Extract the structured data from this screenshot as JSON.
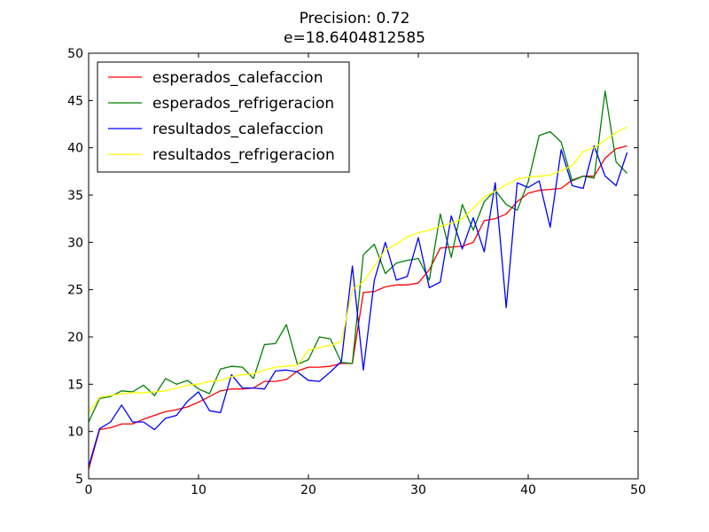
{
  "chart_data": {
    "type": "line",
    "title": "Precision: 0.72",
    "subtitle": "e=18.6404812585",
    "xlabel": "",
    "ylabel": "",
    "xlim": [
      0,
      50
    ],
    "ylim": [
      5,
      50
    ],
    "x_ticks": [
      "0",
      "10",
      "20",
      "30",
      "40",
      "50"
    ],
    "y_ticks": [
      "5",
      "10",
      "15",
      "20",
      "25",
      "30",
      "35",
      "40",
      "45",
      "50"
    ],
    "grid": false,
    "legend_position": "top-left",
    "x": [
      0,
      1,
      2,
      3,
      4,
      5,
      6,
      7,
      8,
      9,
      10,
      11,
      12,
      13,
      14,
      15,
      16,
      17,
      18,
      19,
      20,
      21,
      22,
      23,
      24,
      25,
      26,
      27,
      28,
      29,
      30,
      31,
      32,
      33,
      34,
      35,
      36,
      37,
      38,
      39,
      40,
      41,
      42,
      43,
      44,
      45,
      46,
      47,
      48,
      49
    ],
    "series": [
      {
        "name": "esperados_calefaccion",
        "color": "#ff0000",
        "values": [
          6.0,
          10.2,
          10.4,
          10.8,
          10.8,
          11.3,
          11.7,
          12.1,
          12.3,
          12.6,
          13.1,
          13.7,
          14.3,
          14.5,
          14.5,
          14.6,
          15.3,
          15.3,
          15.5,
          16.4,
          16.8,
          16.8,
          16.9,
          17.2,
          17.2,
          24.7,
          24.8,
          25.3,
          25.5,
          25.5,
          25.7,
          27.1,
          29.4,
          29.5,
          29.6,
          30.0,
          32.3,
          32.5,
          33.0,
          34.3,
          35.2,
          35.5,
          35.6,
          35.7,
          36.6,
          37.0,
          37.0,
          38.9,
          39.9,
          40.2
        ]
      },
      {
        "name": "esperados_refrigeracion",
        "color": "#008000",
        "values": [
          11.0,
          13.5,
          13.7,
          14.3,
          14.2,
          14.9,
          13.8,
          15.6,
          15.0,
          15.4,
          14.5,
          14.0,
          16.6,
          16.9,
          16.8,
          15.6,
          19.2,
          19.3,
          21.3,
          17.1,
          17.6,
          20.0,
          19.8,
          17.3,
          17.2,
          28.7,
          29.8,
          26.7,
          27.8,
          28.1,
          28.3,
          26.0,
          33.0,
          28.4,
          34.0,
          31.3,
          34.3,
          35.5,
          34.0,
          33.4,
          36.4,
          41.3,
          41.7,
          40.6,
          36.5,
          37.0,
          36.8,
          46.0,
          38.5,
          37.3
        ]
      },
      {
        "name": "resultados_calefaccion",
        "color": "#0000ff",
        "values": [
          6.3,
          10.3,
          11.0,
          12.8,
          11.0,
          11.0,
          10.2,
          11.4,
          11.7,
          13.2,
          14.2,
          12.2,
          12.0,
          16.0,
          14.6,
          14.6,
          14.5,
          16.4,
          16.5,
          16.3,
          15.4,
          15.3,
          16.3,
          17.4,
          27.5,
          16.5,
          26.0,
          30.0,
          26.0,
          26.4,
          30.5,
          25.2,
          25.8,
          32.8,
          29.3,
          32.6,
          29.0,
          36.3,
          23.1,
          36.3,
          35.8,
          36.5,
          31.6,
          39.8,
          36.0,
          35.7,
          40.2,
          37.0,
          36.0,
          39.5
        ]
      },
      {
        "name": "resultados_refrigeracion",
        "color": "#ffff00",
        "values": [
          12.0,
          13.6,
          13.8,
          14.0,
          14.1,
          14.1,
          14.2,
          14.3,
          14.6,
          14.9,
          15.0,
          15.3,
          15.4,
          15.8,
          16.0,
          16.1,
          16.5,
          16.8,
          16.9,
          17.0,
          18.6,
          18.9,
          19.1,
          19.5,
          25.0,
          25.8,
          27.5,
          29.2,
          29.8,
          30.6,
          31.0,
          31.3,
          31.7,
          32.0,
          32.5,
          33.6,
          34.8,
          35.4,
          36.1,
          36.7,
          36.9,
          37.0,
          37.1,
          37.6,
          38.1,
          39.6,
          40.0,
          40.8,
          41.6,
          42.2
        ]
      }
    ]
  }
}
